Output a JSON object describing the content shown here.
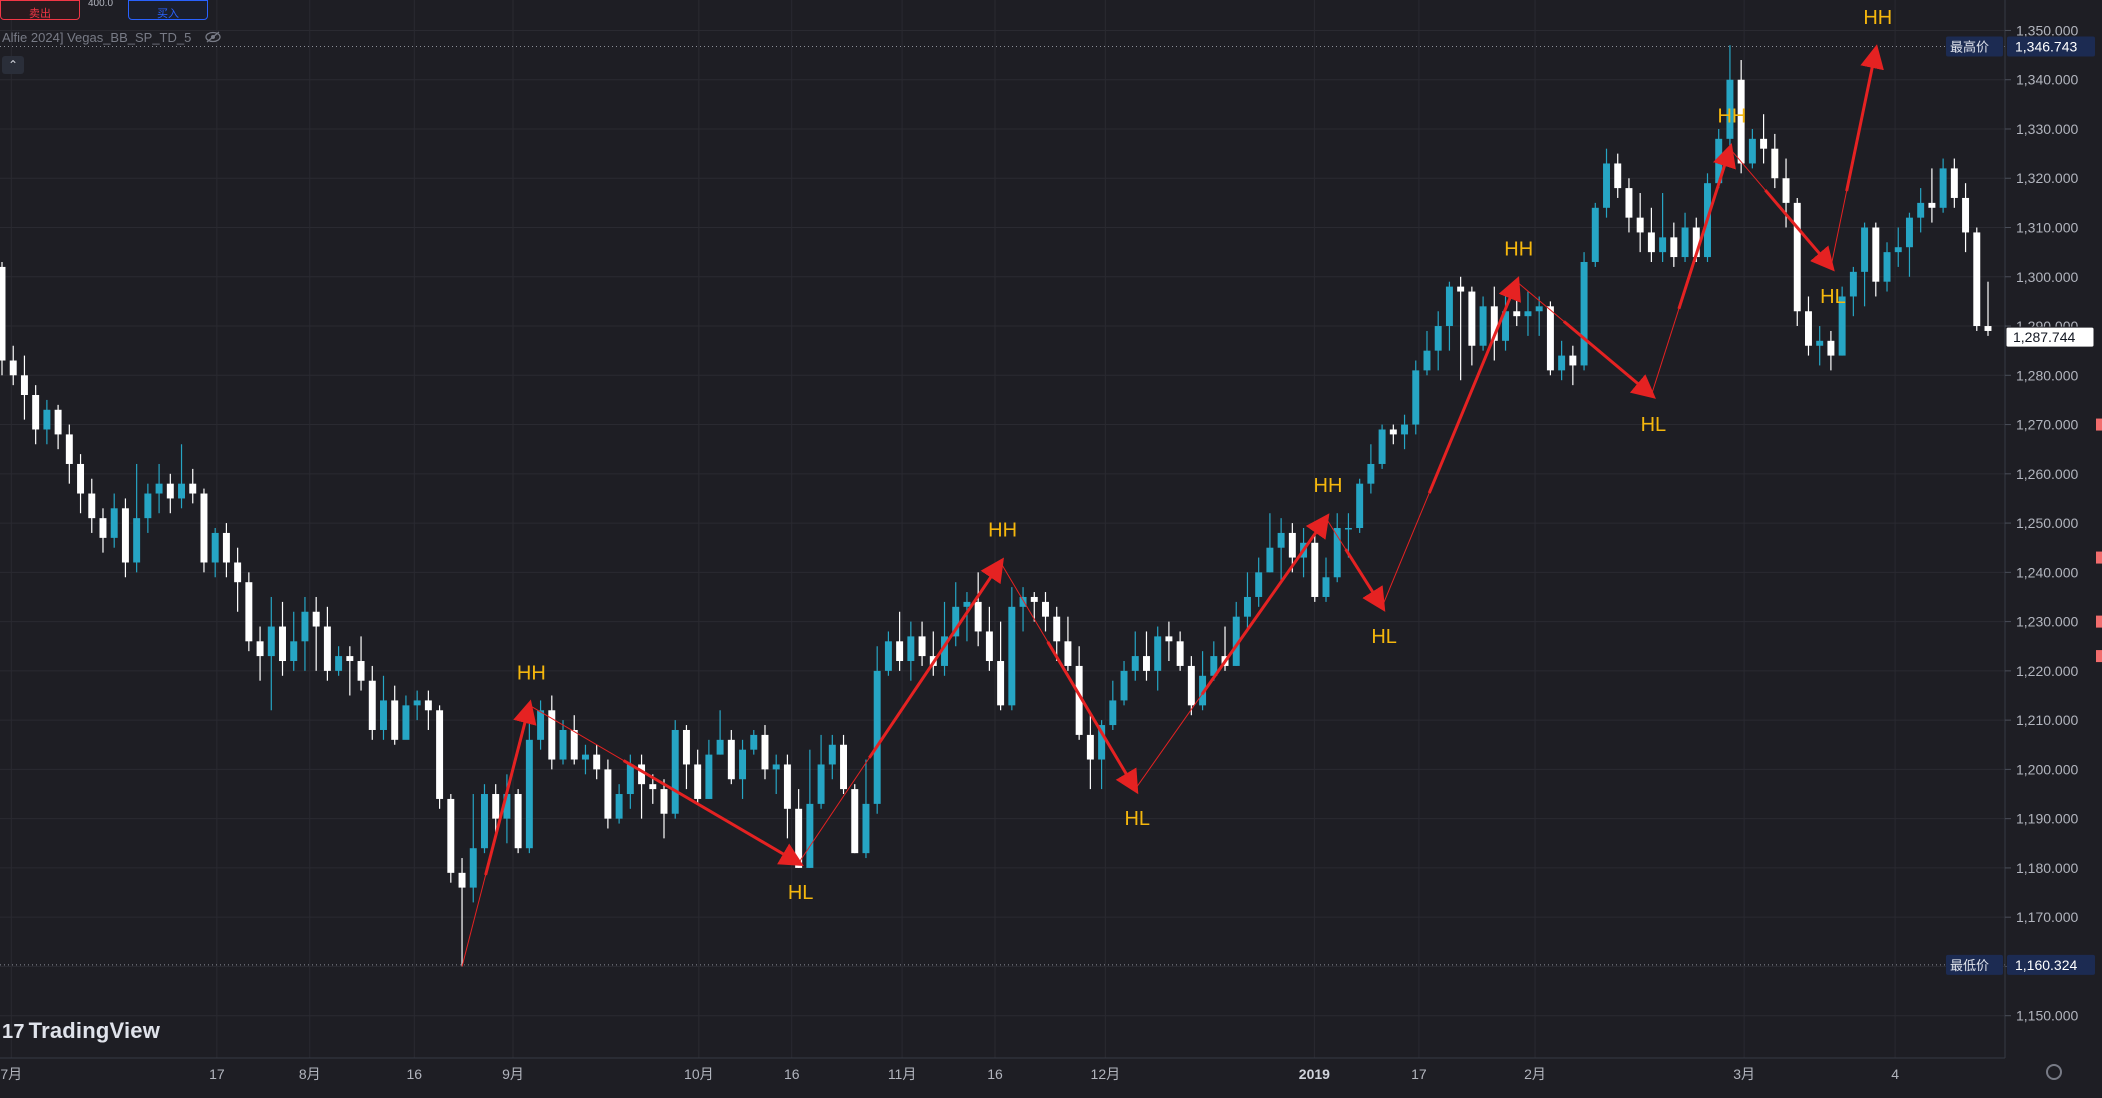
{
  "toolbar": {
    "sell_label": "卖出",
    "buy_label": "买入",
    "spread": "400.0"
  },
  "indicator": {
    "name": "Alfie 2024] Vegas_BB_SP_TD_5"
  },
  "branding": {
    "logo_text": "TradingView",
    "logo_mark": "17"
  },
  "price_axis": {
    "ticks": [
      "1,350.000",
      "1,340.000",
      "1,330.000",
      "1,320.000",
      "1,310.000",
      "1,300.000",
      "1,290.000",
      "1,280.000",
      "1,270.000",
      "1,260.000",
      "1,250.000",
      "1,240.000",
      "1,230.000",
      "1,220.000",
      "1,210.000",
      "1,200.000",
      "1,190.000",
      "1,180.000",
      "1,170.000",
      "1,160.000",
      "1,150.000"
    ],
    "high_label": "最高价",
    "high_value": "1,346.743",
    "low_label": "最低价",
    "low_value": "1,160.324",
    "last_value": "1,287.744"
  },
  "time_axis": {
    "labels": [
      "7月",
      "17",
      "8月",
      "16",
      "9月",
      "10月",
      "16",
      "11月",
      "16",
      "12月",
      "2019",
      "17",
      "2月",
      "3月",
      "4"
    ]
  },
  "colors": {
    "background": "#1e1e24",
    "up": "#26a5c4",
    "down": "#ffffff",
    "swing": "#e52222",
    "swing_label": "#f5b70d",
    "grid": "#2a2a31"
  },
  "chart_data": {
    "type": "candlestick",
    "ylim": [
      1145,
      1355
    ],
    "grid": true,
    "high": 1346.743,
    "low": 1160.324,
    "last": 1287.744,
    "candles": [
      [
        1302,
        1283,
        1303,
        1280
      ],
      [
        1283,
        1280,
        1286,
        1278
      ],
      [
        1280,
        1276,
        1284,
        1271
      ],
      [
        1276,
        1269,
        1278,
        1266
      ],
      [
        1269,
        1273,
        1275,
        1266
      ],
      [
        1273,
        1268,
        1274,
        1265
      ],
      [
        1268,
        1262,
        1270,
        1258
      ],
      [
        1262,
        1256,
        1264,
        1252
      ],
      [
        1256,
        1251,
        1259,
        1248
      ],
      [
        1251,
        1247,
        1253,
        1244
      ],
      [
        1247,
        1253,
        1256,
        1245
      ],
      [
        1253,
        1242,
        1255,
        1239
      ],
      [
        1242,
        1251,
        1262,
        1240
      ],
      [
        1251,
        1256,
        1258,
        1248
      ],
      [
        1256,
        1258,
        1262,
        1252
      ],
      [
        1258,
        1255,
        1260,
        1252
      ],
      [
        1255,
        1258,
        1266,
        1253
      ],
      [
        1258,
        1256,
        1261,
        1254
      ],
      [
        1256,
        1242,
        1257,
        1240
      ],
      [
        1242,
        1248,
        1249,
        1239
      ],
      [
        1248,
        1242,
        1250,
        1239
      ],
      [
        1242,
        1238,
        1245,
        1232
      ],
      [
        1238,
        1226,
        1240,
        1224
      ],
      [
        1226,
        1223,
        1229,
        1218
      ],
      [
        1223,
        1229,
        1235,
        1212
      ],
      [
        1229,
        1222,
        1234,
        1219
      ],
      [
        1222,
        1226,
        1232,
        1220
      ],
      [
        1226,
        1232,
        1235,
        1220
      ],
      [
        1232,
        1229,
        1235,
        1220
      ],
      [
        1229,
        1220,
        1233,
        1218
      ],
      [
        1220,
        1223,
        1225,
        1219
      ],
      [
        1223,
        1222,
        1225,
        1215
      ],
      [
        1222,
        1218,
        1227,
        1216
      ],
      [
        1218,
        1208,
        1221,
        1206
      ],
      [
        1208,
        1214,
        1219,
        1206
      ],
      [
        1214,
        1206,
        1217,
        1205
      ],
      [
        1206,
        1213,
        1215,
        1207
      ],
      [
        1213,
        1214,
        1216,
        1210
      ],
      [
        1214,
        1212,
        1216,
        1208
      ],
      [
        1212,
        1194,
        1213,
        1192
      ],
      [
        1194,
        1179,
        1195,
        1177
      ],
      [
        1179,
        1176,
        1182,
        1160
      ],
      [
        1176,
        1184,
        1195,
        1173
      ],
      [
        1184,
        1195,
        1197,
        1183
      ],
      [
        1195,
        1190,
        1197,
        1186
      ],
      [
        1190,
        1195,
        1199,
        1185
      ],
      [
        1195,
        1184,
        1196,
        1183
      ],
      [
        1184,
        1206,
        1210,
        1183
      ],
      [
        1206,
        1212,
        1214,
        1204
      ],
      [
        1212,
        1202,
        1215,
        1200
      ],
      [
        1202,
        1208,
        1210,
        1201
      ],
      [
        1208,
        1202,
        1211,
        1201
      ],
      [
        1202,
        1203,
        1205,
        1199
      ],
      [
        1203,
        1200,
        1205,
        1198
      ],
      [
        1200,
        1190,
        1202,
        1188
      ],
      [
        1190,
        1195,
        1197,
        1189
      ],
      [
        1195,
        1201,
        1203,
        1192
      ],
      [
        1201,
        1197,
        1203,
        1190
      ],
      [
        1197,
        1196,
        1199,
        1193
      ],
      [
        1196,
        1191,
        1198,
        1186
      ],
      [
        1191,
        1208,
        1210,
        1190
      ],
      [
        1208,
        1201,
        1209,
        1196
      ],
      [
        1201,
        1194,
        1204,
        1193
      ],
      [
        1194,
        1203,
        1206,
        1194
      ],
      [
        1203,
        1206,
        1212,
        1203
      ],
      [
        1206,
        1198,
        1208,
        1197
      ],
      [
        1198,
        1204,
        1206,
        1194
      ],
      [
        1204,
        1207,
        1208,
        1203
      ],
      [
        1207,
        1200,
        1209,
        1198
      ],
      [
        1200,
        1201,
        1203,
        1195
      ],
      [
        1201,
        1192,
        1203,
        1186
      ],
      [
        1192,
        1180,
        1196,
        1180
      ],
      [
        1180,
        1193,
        1204,
        1180
      ],
      [
        1193,
        1201,
        1207,
        1192
      ],
      [
        1201,
        1205,
        1207,
        1198
      ],
      [
        1205,
        1196,
        1207,
        1195
      ],
      [
        1196,
        1183,
        1197,
        1183
      ],
      [
        1183,
        1193,
        1202,
        1182
      ],
      [
        1193,
        1220,
        1225,
        1191
      ],
      [
        1220,
        1226,
        1228,
        1219
      ],
      [
        1226,
        1222,
        1232,
        1220
      ],
      [
        1222,
        1227,
        1230,
        1218
      ],
      [
        1227,
        1223,
        1230,
        1221
      ],
      [
        1223,
        1221,
        1228,
        1219
      ],
      [
        1221,
        1227,
        1234,
        1219
      ],
      [
        1227,
        1233,
        1238,
        1225
      ],
      [
        1233,
        1234,
        1236,
        1226
      ],
      [
        1234,
        1228,
        1240,
        1225
      ],
      [
        1228,
        1222,
        1233,
        1220
      ],
      [
        1222,
        1213,
        1230,
        1212
      ],
      [
        1213,
        1233,
        1237,
        1212
      ],
      [
        1233,
        1235,
        1237,
        1228
      ],
      [
        1235,
        1234,
        1236,
        1230
      ],
      [
        1234,
        1231,
        1236,
        1228
      ],
      [
        1231,
        1226,
        1233,
        1222
      ],
      [
        1226,
        1221,
        1231,
        1220
      ],
      [
        1221,
        1207,
        1225,
        1206
      ],
      [
        1207,
        1202,
        1211,
        1196
      ],
      [
        1202,
        1209,
        1210,
        1196
      ],
      [
        1209,
        1214,
        1218,
        1208
      ],
      [
        1214,
        1220,
        1222,
        1213
      ],
      [
        1220,
        1223,
        1228,
        1218
      ],
      [
        1223,
        1220,
        1228,
        1218
      ],
      [
        1220,
        1227,
        1229,
        1216
      ],
      [
        1227,
        1226,
        1230,
        1222
      ],
      [
        1226,
        1221,
        1228,
        1220
      ],
      [
        1221,
        1213,
        1223,
        1211
      ],
      [
        1213,
        1219,
        1224,
        1212
      ],
      [
        1219,
        1223,
        1226,
        1218
      ],
      [
        1223,
        1221,
        1229,
        1220
      ],
      [
        1221,
        1231,
        1234,
        1221
      ],
      [
        1231,
        1235,
        1240,
        1228
      ],
      [
        1235,
        1240,
        1243,
        1233
      ],
      [
        1240,
        1245,
        1252,
        1240
      ],
      [
        1245,
        1248,
        1251,
        1238
      ],
      [
        1248,
        1243,
        1250,
        1240
      ],
      [
        1243,
        1246,
        1249,
        1239
      ],
      [
        1246,
        1235,
        1248,
        1234
      ],
      [
        1235,
        1239,
        1243,
        1234
      ],
      [
        1239,
        1249,
        1252,
        1238
      ],
      [
        1249,
        1249,
        1252,
        1243
      ],
      [
        1249,
        1258,
        1259,
        1248
      ],
      [
        1258,
        1262,
        1266,
        1256
      ],
      [
        1262,
        1269,
        1270,
        1261
      ],
      [
        1269,
        1268,
        1270,
        1266
      ],
      [
        1268,
        1270,
        1272,
        1265
      ],
      [
        1270,
        1281,
        1283,
        1268
      ],
      [
        1281,
        1285,
        1289,
        1280
      ],
      [
        1285,
        1290,
        1293,
        1281
      ],
      [
        1290,
        1298,
        1299,
        1285
      ],
      [
        1298,
        1297,
        1300,
        1279
      ],
      [
        1297,
        1286,
        1298,
        1282
      ],
      [
        1286,
        1294,
        1296,
        1285
      ],
      [
        1294,
        1287,
        1298,
        1283
      ],
      [
        1287,
        1293,
        1297,
        1285
      ],
      [
        1293,
        1292,
        1297,
        1290
      ],
      [
        1292,
        1293,
        1297,
        1288
      ],
      [
        1293,
        1294,
        1296,
        1288
      ],
      [
        1294,
        1281,
        1295,
        1280
      ],
      [
        1281,
        1284,
        1287,
        1279
      ],
      [
        1284,
        1282,
        1286,
        1278
      ],
      [
        1282,
        1303,
        1305,
        1281
      ],
      [
        1303,
        1314,
        1315,
        1302
      ],
      [
        1314,
        1323,
        1326,
        1312
      ],
      [
        1323,
        1318,
        1325,
        1316
      ],
      [
        1318,
        1312,
        1320,
        1309
      ],
      [
        1312,
        1309,
        1317,
        1305
      ],
      [
        1309,
        1305,
        1314,
        1303
      ],
      [
        1305,
        1308,
        1317,
        1303
      ],
      [
        1308,
        1304,
        1311,
        1302
      ],
      [
        1304,
        1310,
        1313,
        1303
      ],
      [
        1310,
        1304,
        1312,
        1303
      ],
      [
        1304,
        1319,
        1321,
        1303
      ],
      [
        1319,
        1328,
        1330,
        1318
      ],
      [
        1328,
        1340,
        1347,
        1326
      ],
      [
        1340,
        1323,
        1344,
        1321
      ],
      [
        1323,
        1328,
        1330,
        1322
      ],
      [
        1328,
        1326,
        1333,
        1323
      ],
      [
        1326,
        1320,
        1329,
        1318
      ],
      [
        1320,
        1315,
        1324,
        1310
      ],
      [
        1315,
        1293,
        1316,
        1290
      ],
      [
        1293,
        1286,
        1296,
        1284
      ],
      [
        1286,
        1287,
        1290,
        1282
      ],
      [
        1287,
        1284,
        1289,
        1281
      ],
      [
        1284,
        1296,
        1298,
        1284
      ],
      [
        1296,
        1301,
        1302,
        1292
      ],
      [
        1301,
        1310,
        1311,
        1294
      ],
      [
        1310,
        1299,
        1311,
        1296
      ],
      [
        1299,
        1305,
        1307,
        1297
      ],
      [
        1305,
        1306,
        1310,
        1302
      ],
      [
        1306,
        1312,
        1313,
        1300
      ],
      [
        1312,
        1315,
        1318,
        1309
      ],
      [
        1315,
        1314,
        1322,
        1311
      ],
      [
        1314,
        1322,
        1324,
        1313
      ],
      [
        1322,
        1316,
        1324,
        1314
      ],
      [
        1316,
        1309,
        1319,
        1305
      ],
      [
        1309,
        1290,
        1310,
        1289
      ],
      [
        1290,
        1289,
        1299,
        1288
      ]
    ],
    "swings": [
      {
        "label": "HH",
        "index": 47,
        "value": 1213,
        "label_pos": "above"
      },
      {
        "label": "HL",
        "index": 71,
        "value": 1181,
        "label_pos": "below"
      },
      {
        "label": "HH",
        "index": 89,
        "value": 1242,
        "label_pos": "above"
      },
      {
        "label": "HL",
        "index": 101,
        "value": 1196,
        "label_pos": "below"
      },
      {
        "label": "HH",
        "index": 118,
        "value": 1251,
        "label_pos": "above"
      },
      {
        "label": "HL",
        "index": 123,
        "value": 1233,
        "label_pos": "below"
      },
      {
        "label": "HH",
        "index": 135,
        "value": 1299,
        "label_pos": "above"
      },
      {
        "label": "HL",
        "index": 147,
        "value": 1276,
        "label_pos": "below"
      },
      {
        "label": "HH",
        "index": 154,
        "value": 1326,
        "label_pos": "above"
      },
      {
        "label": "HL",
        "index": 163,
        "value": 1302,
        "label_pos": "below"
      },
      {
        "label": "HH",
        "index": 167,
        "value": 1346,
        "label_pos": "above"
      }
    ]
  }
}
